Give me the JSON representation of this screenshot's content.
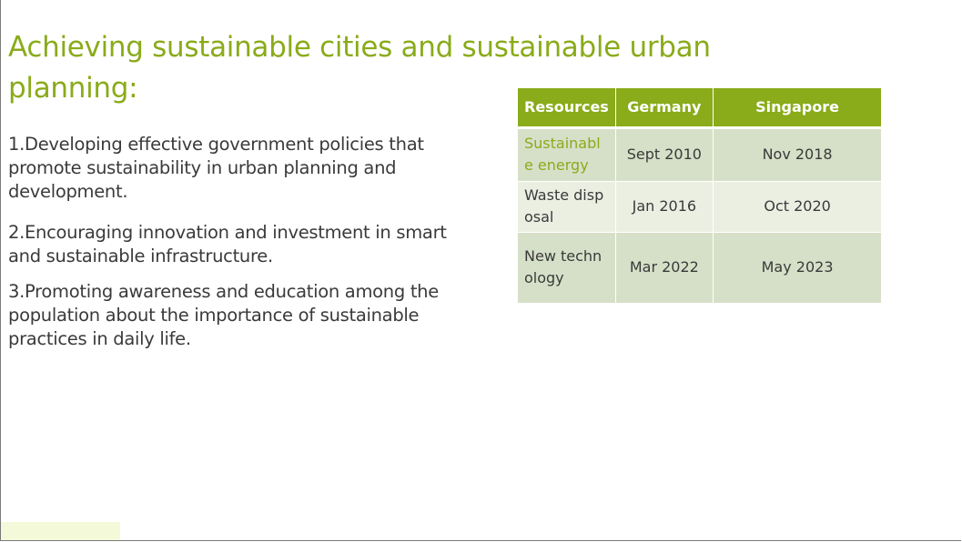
{
  "slide": {
    "title": "Achieving sustainable cities and sustainable urban planning:",
    "points": [
      "1.Developing effective government policies that promote sustainability in urban planning and development.",
      "2.Encouraging innovation and investment in smart and sustainable infrastructure.",
      "3.Promoting awareness and education among the population about the importance of sustainable practices in daily life."
    ]
  },
  "table": {
    "headers": [
      "Resources",
      "Germany",
      "Singapore"
    ],
    "rows": [
      [
        "Sustainable energy",
        "Sept 2010",
        "Nov 2018"
      ],
      [
        "Waste disposal",
        "Jan 2016",
        "Oct 2020"
      ],
      [
        "New technology",
        "Mar 2022",
        "May 2023"
      ]
    ]
  },
  "colors": {
    "accent": "#8aab1a",
    "text": "#3a3a3a",
    "row_band": "#d6e0c8",
    "row_light": "#eaefe2"
  }
}
